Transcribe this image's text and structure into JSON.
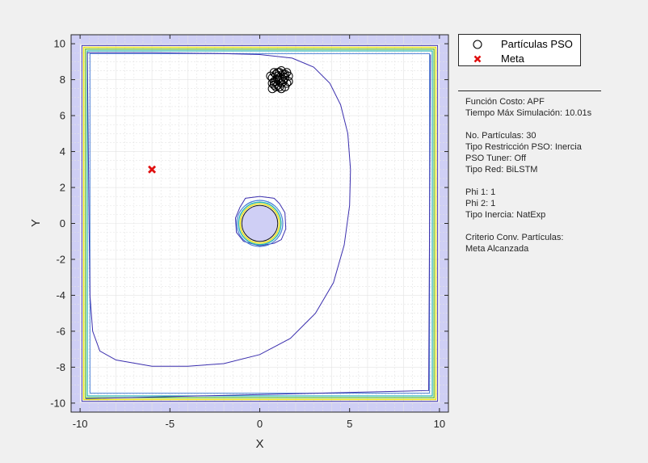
{
  "chart_data": {
    "type": "scatter",
    "xlabel": "X",
    "ylabel": "Y",
    "xlim": [
      -10.5,
      10.5
    ],
    "ylim": [
      -10.5,
      10.5
    ],
    "xticks": [
      -10,
      -5,
      0,
      5,
      10
    ],
    "yticks": [
      -10,
      -8,
      -6,
      -4,
      -2,
      0,
      2,
      4,
      6,
      8,
      10
    ],
    "grid": true,
    "minor_grid": true,
    "legend_position": "outside-top-right",
    "colors": {
      "background_band": "#cfcff5",
      "contour_outer": "#3b2fae",
      "contour_cyan": "#26b3b3",
      "contour_yellow": "#e8e020",
      "contour_green": "#6cc24a",
      "contour_blue": "#4a7fd6",
      "goal": "#e01010",
      "particles": "#000000",
      "grid": "#e3e3e3"
    },
    "goal": {
      "x": -6,
      "y": 3
    },
    "obstacle": {
      "x": 0,
      "y": 0,
      "radius": 1
    },
    "particles": [
      {
        "x": 0.8,
        "y": 8.4
      },
      {
        "x": 1.2,
        "y": 8.5
      },
      {
        "x": 1.4,
        "y": 8.3
      },
      {
        "x": 0.7,
        "y": 8.1
      },
      {
        "x": 1.0,
        "y": 8.2
      },
      {
        "x": 1.3,
        "y": 8.0
      },
      {
        "x": 0.9,
        "y": 7.9
      },
      {
        "x": 1.5,
        "y": 7.8
      },
      {
        "x": 0.8,
        "y": 7.7
      },
      {
        "x": 1.1,
        "y": 7.6
      },
      {
        "x": 1.4,
        "y": 7.6
      },
      {
        "x": 0.7,
        "y": 7.5
      },
      {
        "x": 1.0,
        "y": 8.4
      },
      {
        "x": 1.6,
        "y": 8.2
      },
      {
        "x": 1.2,
        "y": 7.8
      },
      {
        "x": 0.9,
        "y": 8.3
      },
      {
        "x": 1.3,
        "y": 8.3
      },
      {
        "x": 0.8,
        "y": 7.9
      },
      {
        "x": 1.1,
        "y": 8.1
      },
      {
        "x": 1.5,
        "y": 8.4
      },
      {
        "x": 0.6,
        "y": 8.2
      },
      {
        "x": 1.2,
        "y": 7.5
      },
      {
        "x": 1.0,
        "y": 7.7
      },
      {
        "x": 1.4,
        "y": 8.1
      },
      {
        "x": 0.9,
        "y": 7.6
      },
      {
        "x": 1.3,
        "y": 7.9
      },
      {
        "x": 0.7,
        "y": 7.8
      },
      {
        "x": 1.1,
        "y": 8.4
      },
      {
        "x": 1.6,
        "y": 7.9
      },
      {
        "x": 1.0,
        "y": 8.0
      }
    ],
    "trajectory_contour": [
      [
        -9.6,
        9.5
      ],
      [
        -6,
        9.5
      ],
      [
        -2,
        9.45
      ],
      [
        0,
        9.4
      ],
      [
        1.8,
        9.2
      ],
      [
        3,
        8.7
      ],
      [
        3.9,
        7.8
      ],
      [
        4.5,
        6.6
      ],
      [
        4.9,
        5
      ],
      [
        5.05,
        3
      ],
      [
        5,
        1
      ],
      [
        4.7,
        -1.2
      ],
      [
        4.1,
        -3.3
      ],
      [
        3.1,
        -5
      ],
      [
        1.7,
        -6.4
      ],
      [
        0,
        -7.3
      ],
      [
        -2,
        -7.8
      ],
      [
        -4,
        -7.95
      ],
      [
        -6,
        -7.95
      ],
      [
        -8,
        -7.6
      ],
      [
        -8.9,
        -7.1
      ],
      [
        -9.3,
        -6
      ],
      [
        -9.45,
        -4
      ],
      [
        -9.5,
        0
      ],
      [
        -9.55,
        5
      ],
      [
        -9.6,
        9.5
      ]
    ],
    "obstacle_contour": [
      [
        -1.1,
        0.9
      ],
      [
        -0.8,
        1.4
      ],
      [
        0,
        1.5
      ],
      [
        0.8,
        1.4
      ],
      [
        1.1,
        1.1
      ],
      [
        1.4,
        0.6
      ],
      [
        1.45,
        -0.3
      ],
      [
        1.2,
        -0.9
      ],
      [
        0.8,
        -1.1
      ],
      [
        0,
        -1.25
      ],
      [
        -0.9,
        -1.0
      ],
      [
        -1.3,
        -0.5
      ],
      [
        -1.35,
        0.3
      ],
      [
        -1.1,
        0.9
      ]
    ],
    "legend": [
      {
        "label": "Partículas PSO",
        "symbol": "circle"
      },
      {
        "label": "Meta",
        "symbol": "x"
      }
    ],
    "annotation_lines": [
      "Función Costo: APF",
      "Tiempo Máx Simulación: 10.01s",
      "",
      "No. Partículas: 30",
      "Tipo Restricción PSO: Inercia",
      "PSO Tuner: Off",
      "Tipo Red: BiLSTM",
      "",
      "Phi 1: 1",
      "Phi 2: 1",
      "Tipo Inercia: NatExp",
      "",
      "Criterio Conv. Partículas:",
      "Meta Alcanzada"
    ]
  }
}
